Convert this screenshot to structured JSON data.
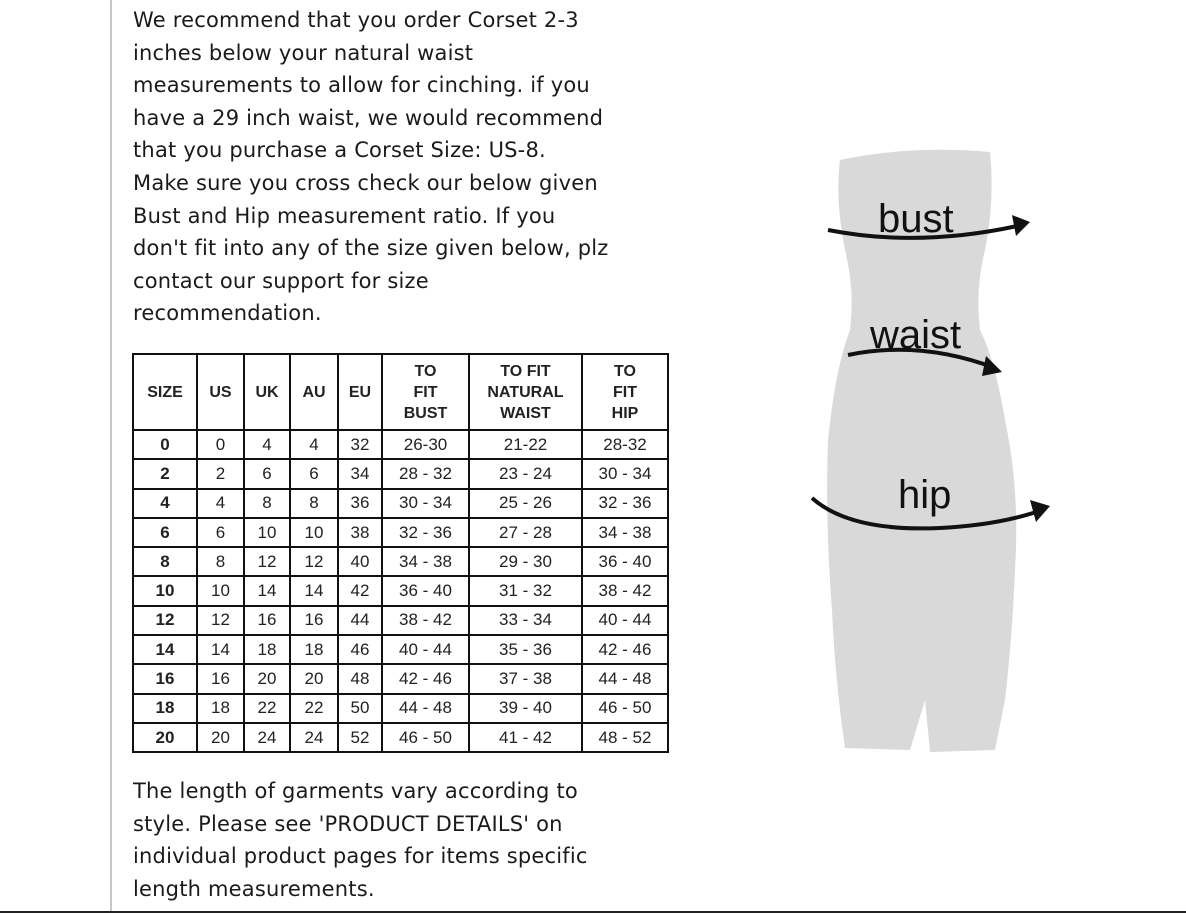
{
  "intro_lines": [
    "We recommend that you order Corset 2-3",
    "inches below your natural waist",
    "measurements to allow for cinching. if you",
    "have a 29 inch waist, we would recommend",
    "that you purchase a Corset Size: US-8.",
    "Make sure you cross check our below given",
    "Bust and Hip measurement ratio. If you",
    "don't fit into any of the size given below, plz",
    "contact our support for size",
    "recommendation."
  ],
  "table": {
    "headers": [
      [
        "SIZE"
      ],
      [
        "US"
      ],
      [
        "UK"
      ],
      [
        "AU"
      ],
      [
        "EU"
      ],
      [
        "TO",
        "FIT",
        "BUST"
      ],
      [
        "TO FIT",
        "NATURAL",
        "WAIST"
      ],
      [
        "TO",
        "FIT",
        "HIP"
      ]
    ],
    "rows": [
      [
        "0",
        "0",
        "4",
        "4",
        "32",
        "26-30",
        "21-22",
        "28-32"
      ],
      [
        "2",
        "2",
        "6",
        "6",
        "34",
        "28 - 32",
        "23 - 24",
        "30 - 34"
      ],
      [
        "4",
        "4",
        "8",
        "8",
        "36",
        "30 - 34",
        "25 - 26",
        "32 - 36"
      ],
      [
        "6",
        "6",
        "10",
        "10",
        "38",
        "32 - 36",
        "27 - 28",
        "34 - 38"
      ],
      [
        "8",
        "8",
        "12",
        "12",
        "40",
        "34 - 38",
        "29 - 30",
        "36 - 40"
      ],
      [
        "10",
        "10",
        "14",
        "14",
        "42",
        "36 - 40",
        "31 - 32",
        "38 - 42"
      ],
      [
        "12",
        "12",
        "16",
        "16",
        "44",
        "38 - 42",
        "33 - 34",
        "40 - 44"
      ],
      [
        "14",
        "14",
        "18",
        "18",
        "46",
        "40 - 44",
        "35 - 36",
        "42 - 46"
      ],
      [
        "16",
        "16",
        "20",
        "20",
        "48",
        "42 - 46",
        "37 - 38",
        "44 - 48"
      ],
      [
        "18",
        "18",
        "22",
        "22",
        "50",
        "44 - 48",
        "39 - 40",
        "46 - 50"
      ],
      [
        "20",
        "20",
        "24",
        "24",
        "52",
        "46 - 50",
        "41 - 42",
        "48 - 52"
      ]
    ]
  },
  "outro_lines": [
    "The length of garments vary according to",
    "style. Please see 'PRODUCT DETAILS'  on",
    "individual product pages for items specific",
    "length measurements."
  ],
  "figure": {
    "labels": {
      "bust": "bust",
      "waist": "waist",
      "hip": "hip"
    },
    "body_color": "#d9d9d9"
  }
}
